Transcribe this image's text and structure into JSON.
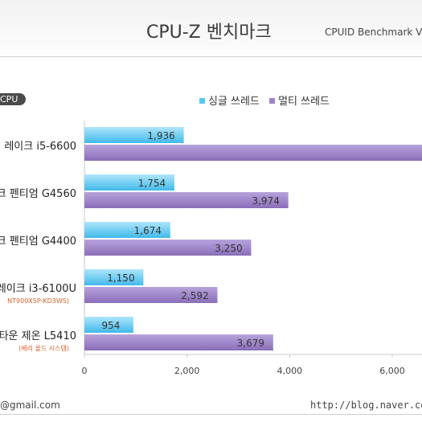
{
  "header": {
    "title": "CPU-Z 벤치마크",
    "subtitle": "CPUID Benchmark V."
  },
  "badge": "CPU",
  "footer": {
    "left": "@gmail.com",
    "right": "http://blog.naver.com/"
  },
  "colors": {
    "single": "#5cc8f0",
    "multi": "#9f84c8"
  },
  "chart_data": {
    "type": "bar",
    "orientation": "horizontal",
    "title": "CPU-Z 벤치마크",
    "categories": [
      {
        "name": "레이크 i5-6600",
        "sub": ""
      },
      {
        "name": "크 펜티엄 G4560",
        "sub": ""
      },
      {
        "name": "크 펜티엄 G4400",
        "sub": ""
      },
      {
        "name": "레이크 i3-6100U",
        "sub": "NT900X5P-KD3WS)"
      },
      {
        "name": "타운 제온 L5410",
        "sub": "(베리 올드 시스템)"
      }
    ],
    "series": [
      {
        "name": "싱글 쓰레드",
        "values": [
          1936,
          1754,
          1674,
          1150,
          954
        ],
        "labels": [
          "1,936",
          "1,754",
          "1,674",
          "1,150",
          "954"
        ]
      },
      {
        "name": "멀티 쓰레드",
        "values": [
          6700,
          3974,
          3250,
          2592,
          3679
        ],
        "labels": [
          "",
          "3,974",
          "3,250",
          "2,592",
          "3,679"
        ]
      }
    ],
    "xticks": [
      0,
      2000,
      4000,
      6000
    ],
    "xtick_labels": [
      "0",
      "2,000",
      "4,000",
      "6,000"
    ],
    "xlim": [
      0,
      6000
    ],
    "legend_position": "top"
  }
}
